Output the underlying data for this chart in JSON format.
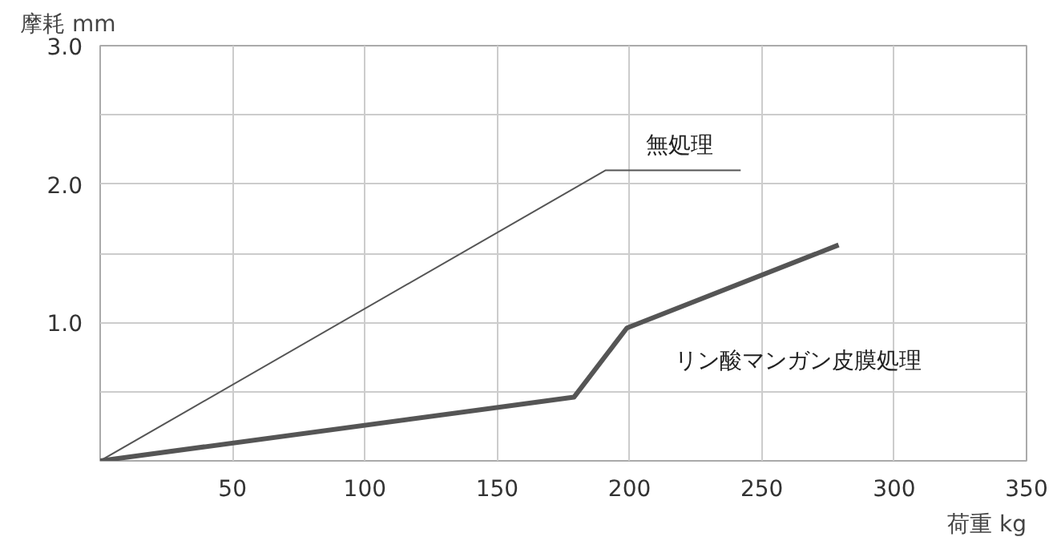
{
  "chart_data": {
    "type": "line",
    "xlabel": "荷重 kg",
    "ylabel": "摩耗 mm",
    "xlim": [
      0,
      350
    ],
    "ylim": [
      0,
      3
    ],
    "xticks": [
      {
        "value": 0,
        "label": null
      },
      50,
      100,
      150,
      200,
      250,
      300,
      350
    ],
    "yticks": [
      {
        "value": 0,
        "label": null
      },
      {
        "value": 0.5,
        "label": null
      },
      {
        "value": 1,
        "label": "1.0"
      },
      {
        "value": 1.5,
        "label": null
      },
      {
        "value": 2,
        "label": "2.0"
      },
      {
        "value": 2.5,
        "label": null
      },
      {
        "value": 3,
        "label": "3.0"
      }
    ],
    "grid": true,
    "series": [
      {
        "name": "無処理",
        "color": "#555555",
        "x": [
          0,
          191,
          242
        ],
        "values": [
          0,
          2.1,
          2.1
        ]
      },
      {
        "name": "リン酸マンガン皮膜処理",
        "color": "#555555",
        "x": [
          0,
          179,
          199,
          279
        ],
        "values": [
          0,
          0.46,
          0.96,
          1.56
        ]
      }
    ]
  }
}
